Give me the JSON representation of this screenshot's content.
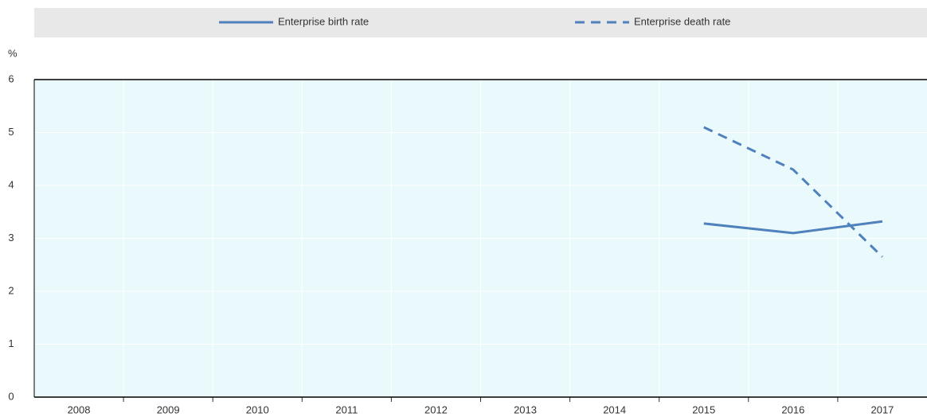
{
  "chart_data": {
    "type": "line",
    "y_unit": "%",
    "categories": [
      "2008",
      "2009",
      "2010",
      "2011",
      "2012",
      "2013",
      "2014",
      "2015",
      "2016",
      "2017"
    ],
    "series": [
      {
        "name": "Enterprise birth rate",
        "color": "#4f81bd",
        "dash": false,
        "values": [
          null,
          null,
          null,
          null,
          null,
          null,
          null,
          3.28,
          3.1,
          3.32
        ]
      },
      {
        "name": "Enterprise death rate",
        "color": "#4f81bd",
        "dash": true,
        "values": [
          null,
          null,
          null,
          null,
          null,
          null,
          null,
          5.1,
          4.3,
          2.65
        ]
      }
    ],
    "ylim": [
      0,
      6
    ],
    "yticks": [
      0,
      1,
      2,
      3,
      4,
      5,
      6
    ],
    "grid": true,
    "legend": "top"
  }
}
